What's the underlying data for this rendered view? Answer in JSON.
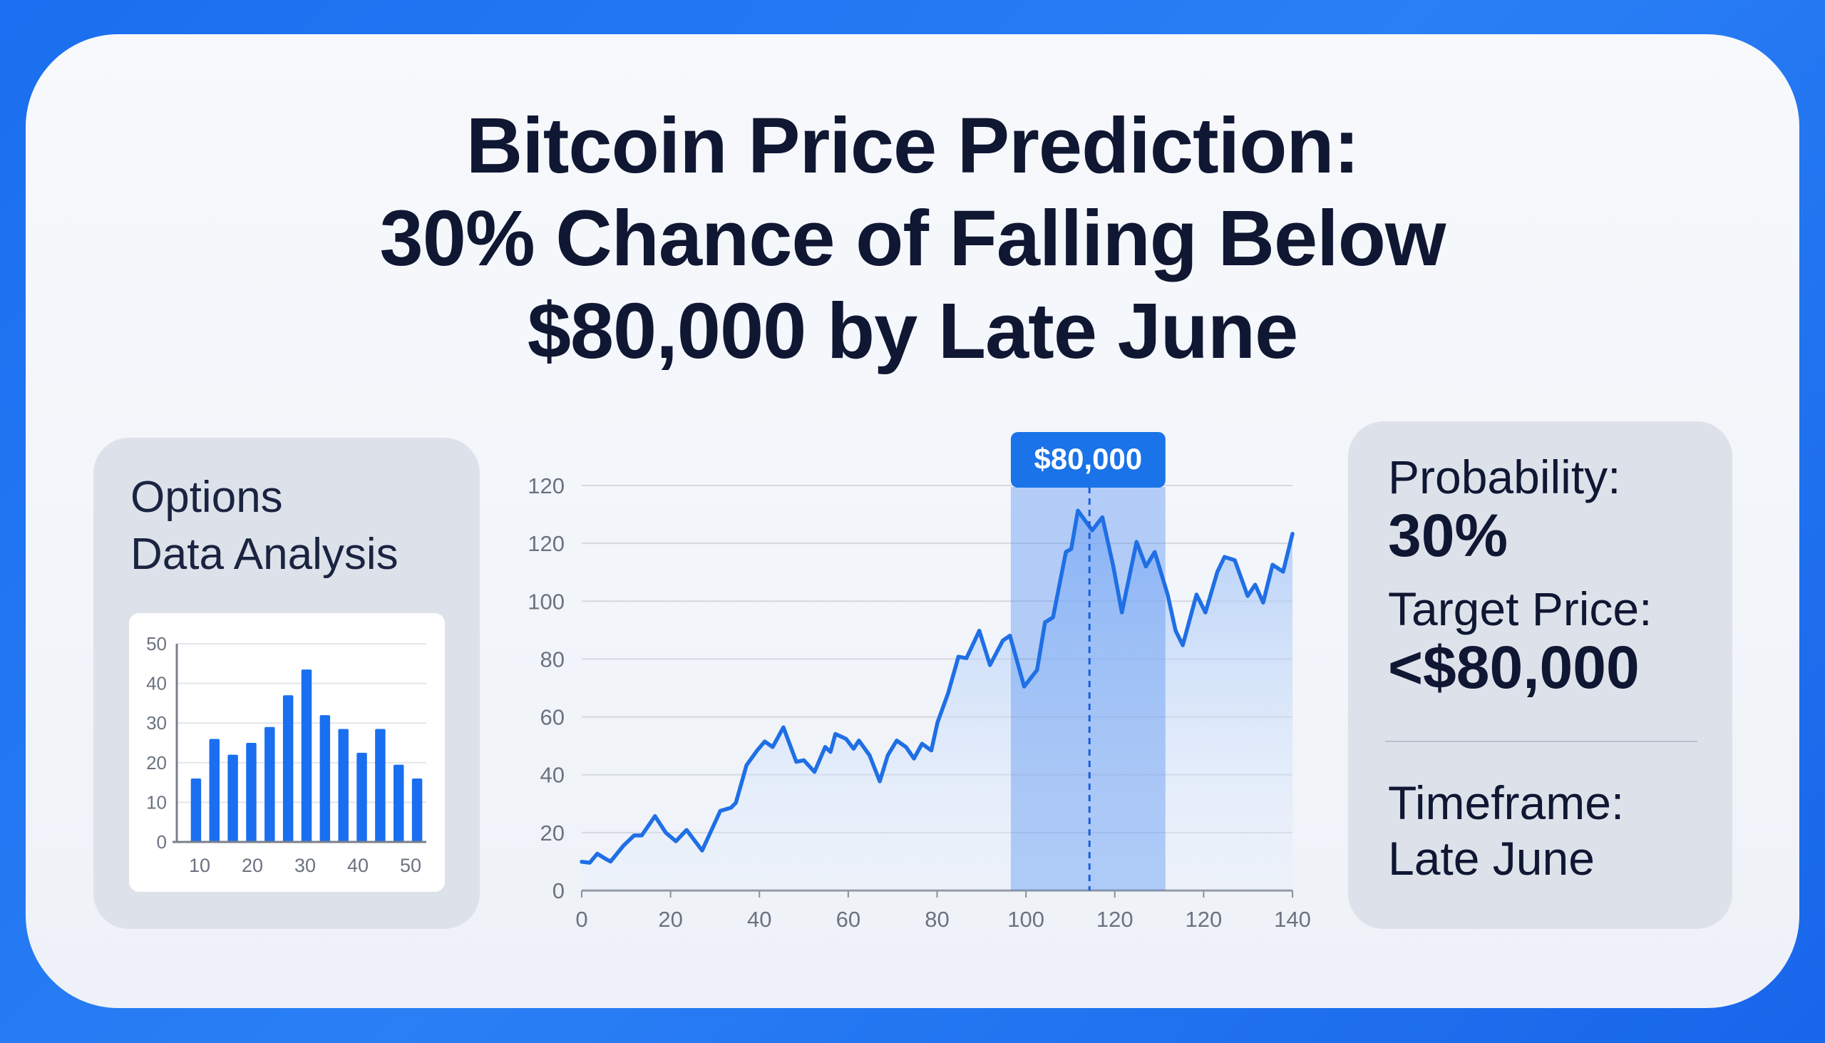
{
  "title": {
    "line1": "Bitcoin Price Prediction:",
    "line2": "30% Chance of Falling Below",
    "line3": "$80,000 by Late June"
  },
  "left_panel": {
    "line1": "Options",
    "line2": "Data Analysis"
  },
  "right_panel": {
    "probability_label": "Probability:",
    "probability_value": "30%",
    "target_label": "Target Price:",
    "target_value": "<$80,000",
    "timeframe_label": "Timeframe:",
    "timeframe_value": "Late June"
  },
  "colors": {
    "accent": "#1a73e8",
    "line": "#1f6fe5",
    "panel": "#dde2ea",
    "frame": "#1a6ff0"
  },
  "chart_data": [
    {
      "type": "bar",
      "title": "",
      "xlabel": "",
      "ylabel": "",
      "ylim": [
        0,
        50
      ],
      "yticks": [
        "0",
        "10",
        "20",
        "30",
        "40",
        "50"
      ],
      "xticks": [
        "10",
        "20",
        "30",
        "40",
        "50"
      ],
      "values": [
        16,
        26,
        22,
        25,
        29,
        37,
        43.5,
        32,
        28.5,
        22.5,
        28.5,
        19.5,
        16
      ]
    },
    {
      "type": "area",
      "title": "",
      "xlabel": "",
      "ylabel": "",
      "xlim": [
        0,
        160
      ],
      "ylim": [
        0,
        140
      ],
      "xticks": [
        "0",
        "20",
        "40",
        "60",
        "80",
        "100",
        "120",
        "120",
        "140"
      ],
      "yticks": [
        "0",
        "20",
        "40",
        "60",
        "80",
        "100",
        "120",
        "120"
      ],
      "highlight": {
        "from": 96.6,
        "to": 131.4,
        "marker": 114.3,
        "label": "$80,000"
      },
      "x": [
        0,
        1.8,
        3.5,
        5.3,
        6.5,
        9.4,
        11.8,
        13.5,
        16.5,
        18.9,
        21.2,
        23.6,
        27.1,
        31.2,
        33.6,
        34.7,
        37.1,
        39.5,
        41.2,
        43,
        45.4,
        48.3,
        50,
        52.4,
        54.8,
        56,
        57.1,
        59.5,
        61.2,
        62.4,
        64.8,
        67.1,
        68.9,
        70.9,
        73,
        74.8,
        76.6,
        78.7,
        80.1,
        82.5,
        84.8,
        86.6,
        87.8,
        89.5,
        91.9,
        94.8,
        96.4,
        99.6,
        102.5,
        104.3,
        106.1,
        109,
        110.2,
        111.7,
        114.9,
        117.2,
        119.6,
        121.6,
        124.9,
        127,
        129,
        131.9,
        133.7,
        135.3,
        138.4,
        140.4,
        143.1,
        144.7,
        147,
        149,
        149.9,
        151.6,
        153.4,
        155.5,
        157.9,
        160
      ],
      "y": [
        9.9,
        9.6,
        12.7,
        11,
        10,
        15.5,
        19,
        19,
        25.7,
        20,
        17,
        20.9,
        13.8,
        27.5,
        28.6,
        30.3,
        43.3,
        48.4,
        51.5,
        49.6,
        56.4,
        44.5,
        45,
        41,
        49.6,
        47.9,
        54.1,
        52.4,
        49,
        51.8,
        46.7,
        37.7,
        46.7,
        51.8,
        49.6,
        45.6,
        50.7,
        48.4,
        58.1,
        68.3,
        80.8,
        80.3,
        84.2,
        89.8,
        77.9,
        86.4,
        88.1,
        70.5,
        76.2,
        92.7,
        94.4,
        117,
        118.1,
        131.3,
        124.5,
        129,
        112.5,
        96.1,
        120.5,
        112,
        117,
        102.3,
        89.8,
        84.8,
        102.3,
        96.1,
        110.2,
        115.3,
        114.2,
        105.7,
        101.8,
        105.7,
        99.5,
        112.6,
        110.2,
        123.3
      ]
    }
  ]
}
